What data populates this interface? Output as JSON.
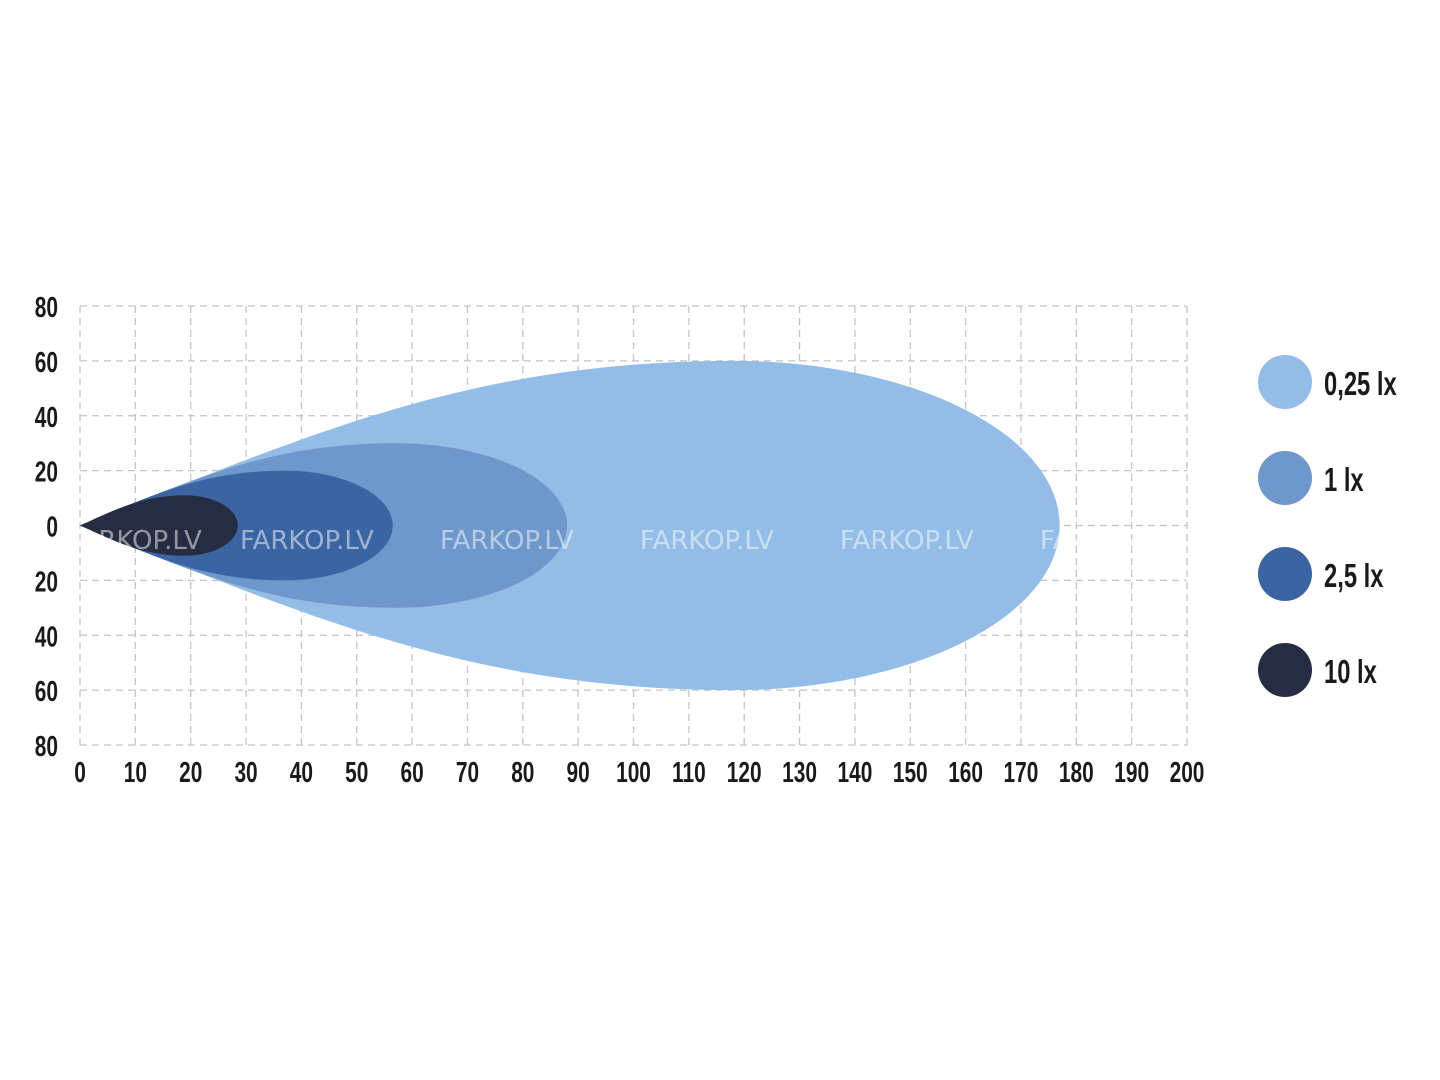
{
  "chart_data": {
    "type": "area",
    "title": "",
    "xlabel": "",
    "ylabel": "",
    "xlim": [
      0,
      200
    ],
    "ylim": [
      -80,
      80
    ],
    "x_ticks": [
      "0",
      "10",
      "20",
      "30",
      "40",
      "50",
      "60",
      "70",
      "80",
      "90",
      "100",
      "110",
      "120",
      "130",
      "140",
      "150",
      "160",
      "170",
      "180",
      "190",
      "200"
    ],
    "y_ticks": [
      "80",
      "60",
      "40",
      "20",
      "0",
      "20",
      "40",
      "60",
      "80"
    ],
    "grid": true,
    "legend_placement": "right",
    "watermark": "FARKOP.LV",
    "series": [
      {
        "name": "0,25 lx",
        "color": "#93bde6",
        "reach": 177,
        "half_width": 60,
        "widest_at": 118
      },
      {
        "name": "1 lx",
        "color": "#6e97cb",
        "reach": 88,
        "half_width": 30,
        "widest_at": 57
      },
      {
        "name": "2,5 lx",
        "color": "#3b65a2",
        "reach": 56.5,
        "half_width": 20,
        "widest_at": 37
      },
      {
        "name": "10 lx",
        "color": "#262c42",
        "reach": 28.5,
        "half_width": 11,
        "widest_at": 19
      }
    ]
  }
}
